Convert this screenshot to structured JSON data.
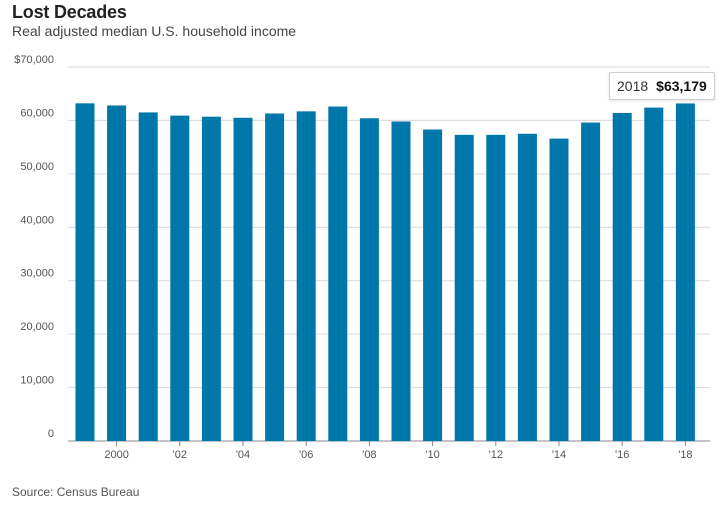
{
  "chart_data": {
    "type": "bar",
    "title": "Lost Decades",
    "subtitle": "Real adjusted median U.S. household income",
    "source": "Source: Census Bureau",
    "ylim": [
      0,
      70000
    ],
    "yticks": [
      0,
      10000,
      20000,
      30000,
      40000,
      50000,
      60000,
      70000
    ],
    "ytick_labels": [
      "0",
      "10,000",
      "20,000",
      "30,000",
      "40,000",
      "50,000",
      "60,000",
      "$70,000"
    ],
    "xtick_labels": [
      {
        "year": 2000,
        "label": "2000"
      },
      {
        "year": 2002,
        "label": "'02"
      },
      {
        "year": 2004,
        "label": "'04"
      },
      {
        "year": 2006,
        "label": "'06"
      },
      {
        "year": 2008,
        "label": "'08"
      },
      {
        "year": 2010,
        "label": "'10"
      },
      {
        "year": 2012,
        "label": "'12"
      },
      {
        "year": 2014,
        "label": "'14"
      },
      {
        "year": 2016,
        "label": "'16"
      },
      {
        "year": 2018,
        "label": "'18"
      }
    ],
    "categories": [
      1999,
      2000,
      2001,
      2002,
      2003,
      2004,
      2005,
      2006,
      2007,
      2008,
      2009,
      2010,
      2011,
      2012,
      2013,
      2014,
      2015,
      2016,
      2017,
      2018
    ],
    "values": [
      63200,
      62800,
      61500,
      60900,
      60700,
      60500,
      61300,
      61700,
      62600,
      60400,
      59800,
      58300,
      57300,
      57300,
      57500,
      56600,
      59600,
      61400,
      62400,
      63179
    ],
    "bar_color": "#0077aa",
    "grid": true,
    "tooltip": {
      "year": "2018",
      "value": "$63,179"
    }
  }
}
